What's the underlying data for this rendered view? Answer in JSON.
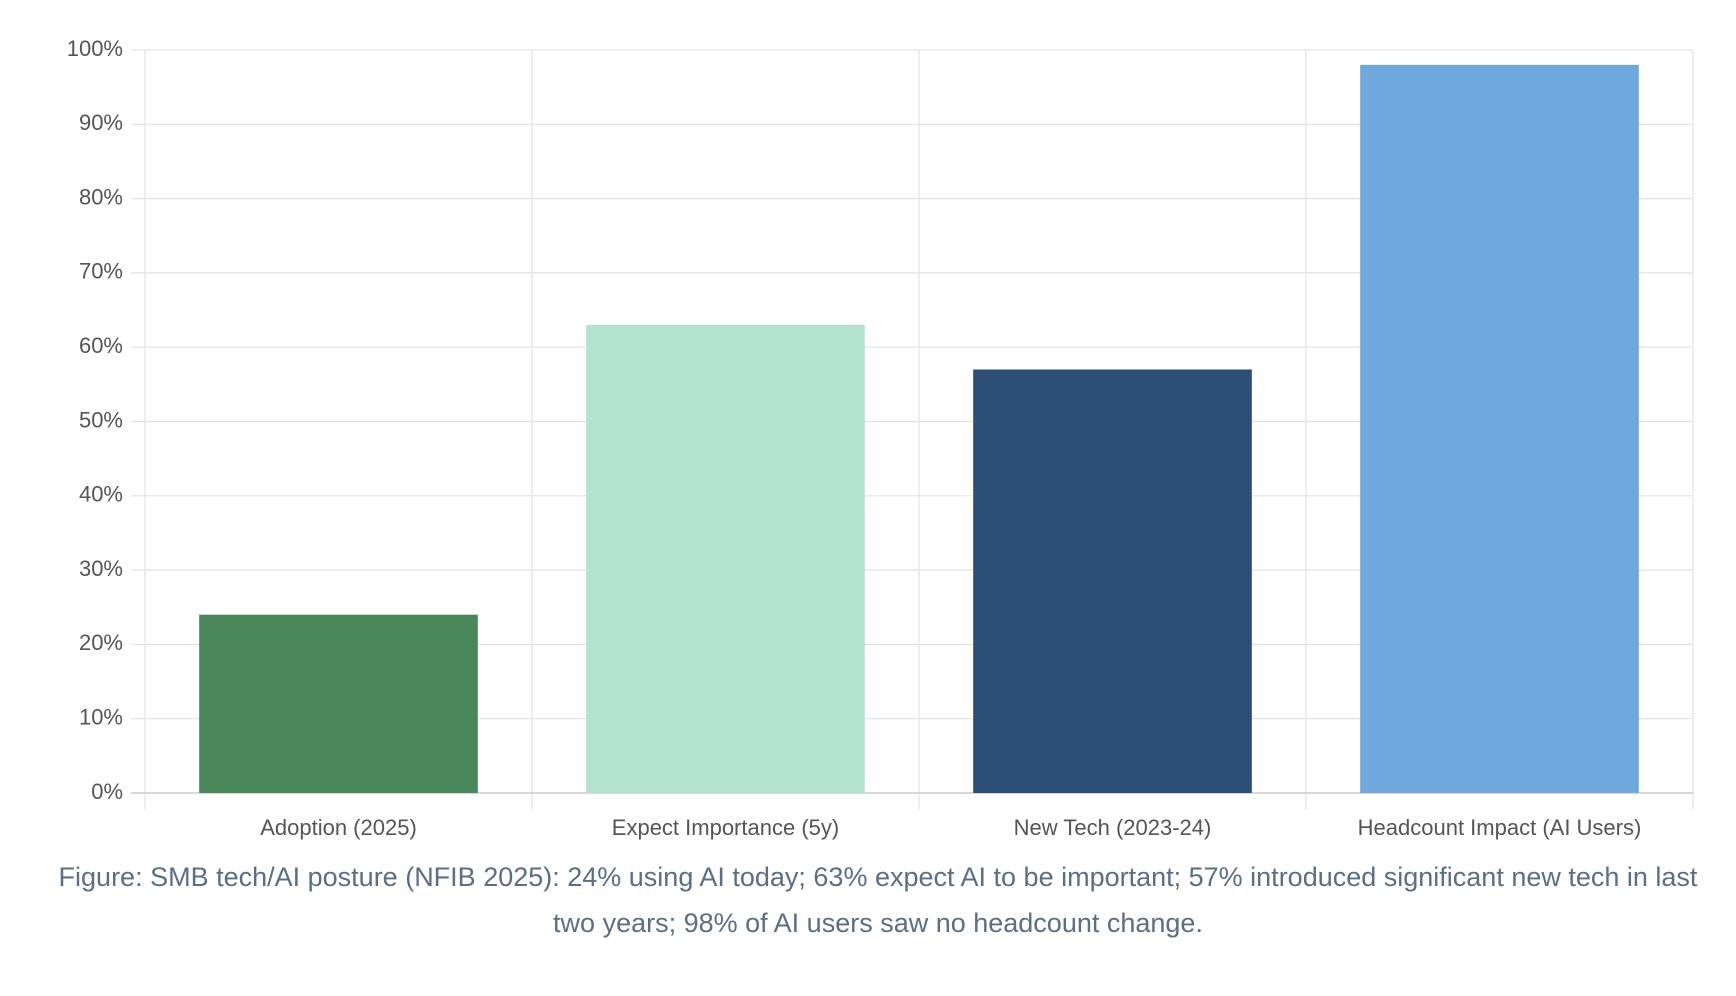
{
  "chart_data": {
    "type": "bar",
    "categories": [
      "Adoption (2025)",
      "Expect Importance (5y)",
      "New Tech (2023-24)",
      "Headcount Impact (AI Users)"
    ],
    "values": [
      24,
      63,
      57,
      98
    ],
    "colors": [
      "#4a885c",
      "#b3e3cf",
      "#2d4f77",
      "#6fa8dc"
    ],
    "ylim": [
      0,
      100
    ],
    "yticks": [
      {
        "value": 0,
        "label": "0%"
      },
      {
        "value": 10,
        "label": "10%"
      },
      {
        "value": 20,
        "label": "20%"
      },
      {
        "value": 30,
        "label": "30%"
      },
      {
        "value": 40,
        "label": "40%"
      },
      {
        "value": 50,
        "label": "50%"
      },
      {
        "value": 60,
        "label": "60%"
      },
      {
        "value": 70,
        "label": "70%"
      },
      {
        "value": 80,
        "label": "80%"
      },
      {
        "value": 90,
        "label": "90%"
      },
      {
        "value": 100,
        "label": "100%"
      }
    ],
    "grid": true,
    "caption": "Figure: SMB tech/AI posture (NFIB 2025): 24% using AI today; 63% expect AI to be important; 57% introduced significant new tech in last two years; 98% of AI users saw no headcount change."
  }
}
